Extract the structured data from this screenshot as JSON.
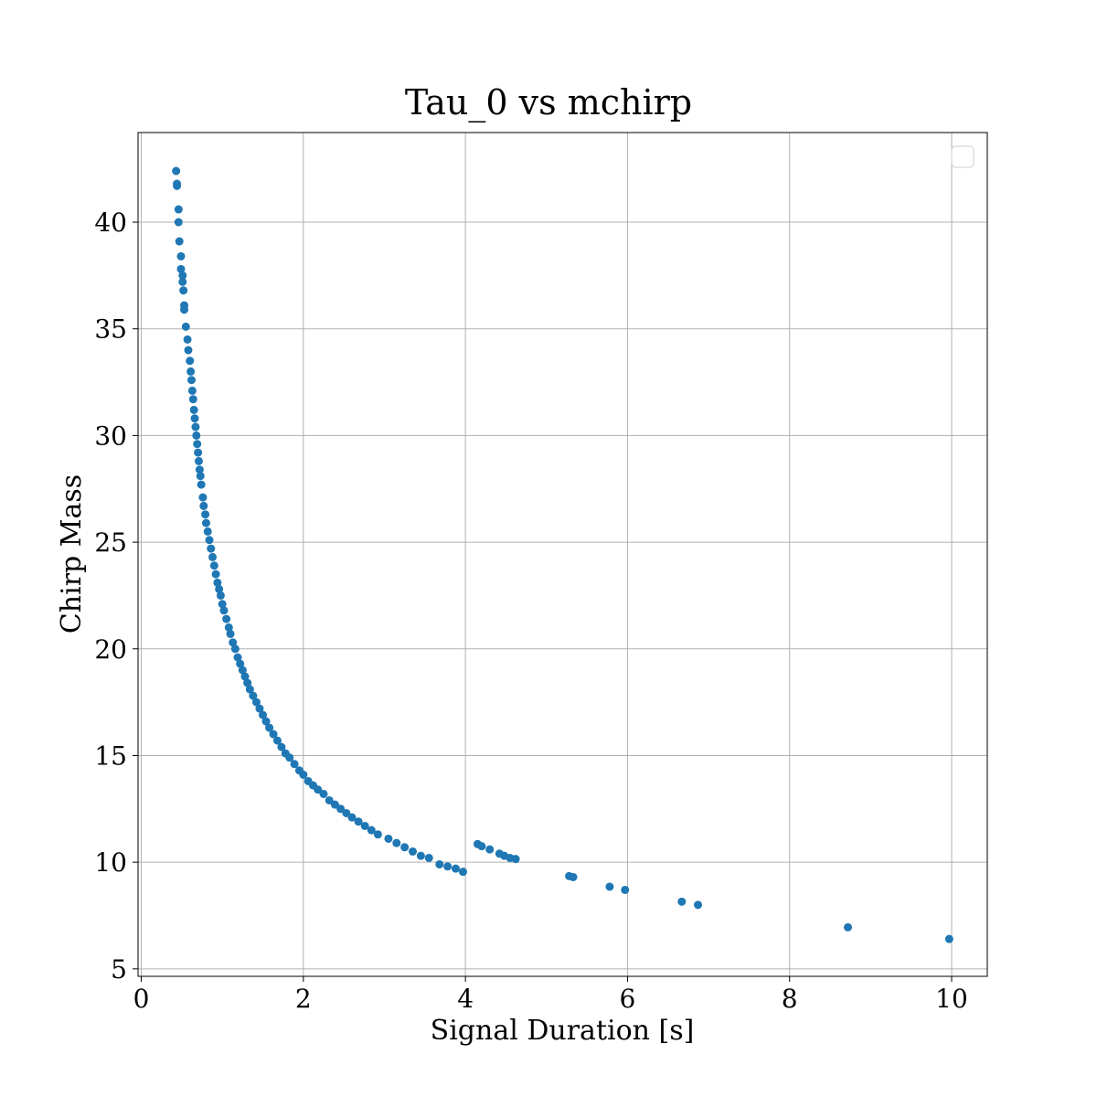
{
  "chart_data": {
    "type": "scatter",
    "title": "Tau_0 vs mchirp",
    "xlabel": "Signal Duration [s]",
    "ylabel": "Chirp Mass",
    "xlim": [
      -0.04,
      10.44
    ],
    "ylim": [
      4.65,
      44.2
    ],
    "xticks": [
      0,
      2,
      4,
      6,
      8,
      10
    ],
    "xtick_labels": [
      "0",
      "2",
      "4",
      "6",
      "8",
      "10"
    ],
    "yticks": [
      5,
      10,
      15,
      20,
      25,
      30,
      35,
      40
    ],
    "ytick_labels": [
      "5",
      "10",
      "15",
      "20",
      "25",
      "30",
      "35",
      "40"
    ],
    "grid": true,
    "legend": "top-right (empty)",
    "marker_color": "#1f77b4",
    "series": [
      {
        "x": [
          0.43,
          0.44,
          0.44,
          0.46,
          0.46,
          0.47,
          0.49,
          0.49,
          0.51,
          0.51,
          0.52,
          0.53,
          0.53,
          0.55,
          0.57,
          0.58,
          0.6,
          0.61,
          0.62,
          0.63,
          0.64,
          0.65,
          0.66,
          0.67,
          0.68,
          0.69,
          0.7,
          0.71,
          0.72,
          0.73,
          0.74,
          0.76,
          0.77,
          0.79,
          0.8,
          0.82,
          0.84,
          0.86,
          0.88,
          0.9,
          0.92,
          0.94,
          0.96,
          0.98,
          1.0,
          1.02,
          1.05,
          1.08,
          1.1,
          1.13,
          1.16,
          1.19,
          1.22,
          1.25,
          1.28,
          1.31,
          1.34,
          1.38,
          1.42,
          1.46,
          1.5,
          1.54,
          1.58,
          1.63,
          1.68,
          1.73,
          1.78,
          1.83,
          1.89,
          1.95,
          2.0,
          2.06,
          2.12,
          2.18,
          2.25,
          2.32,
          2.39,
          2.46,
          2.53,
          2.6,
          2.68,
          2.76,
          2.84,
          2.92,
          3.05,
          3.15,
          3.25,
          3.35,
          3.45,
          3.55,
          3.68,
          3.78,
          3.88,
          3.97,
          4.15,
          4.2,
          4.3,
          4.42,
          4.48,
          4.55,
          4.62,
          5.28,
          5.33,
          5.78,
          5.97,
          6.67,
          6.87,
          8.72,
          9.97
        ],
        "y": [
          42.4,
          41.8,
          41.7,
          40.6,
          40.0,
          39.1,
          38.4,
          37.8,
          37.5,
          37.2,
          36.8,
          36.1,
          35.9,
          35.1,
          34.5,
          34.0,
          33.5,
          33.0,
          32.6,
          32.1,
          31.7,
          31.2,
          30.8,
          30.4,
          30.0,
          29.6,
          29.2,
          28.8,
          28.4,
          28.1,
          27.7,
          27.1,
          26.7,
          26.3,
          25.9,
          25.5,
          25.1,
          24.7,
          24.3,
          23.9,
          23.5,
          23.1,
          22.8,
          22.5,
          22.1,
          21.8,
          21.4,
          21.0,
          20.7,
          20.3,
          20.0,
          19.6,
          19.3,
          19.0,
          18.7,
          18.4,
          18.1,
          17.8,
          17.5,
          17.2,
          16.9,
          16.6,
          16.3,
          16.0,
          15.7,
          15.4,
          15.1,
          14.9,
          14.6,
          14.3,
          14.1,
          13.8,
          13.6,
          13.4,
          13.2,
          12.9,
          12.7,
          12.5,
          12.3,
          12.1,
          11.9,
          11.7,
          11.5,
          11.3,
          11.1,
          10.9,
          10.7,
          10.5,
          10.3,
          10.2,
          9.9,
          9.8,
          9.7,
          9.55,
          10.85,
          10.75,
          10.6,
          10.4,
          10.3,
          10.2,
          10.15,
          9.35,
          9.3,
          8.85,
          8.7,
          8.15,
          8.0,
          6.95,
          6.4
        ]
      }
    ]
  }
}
